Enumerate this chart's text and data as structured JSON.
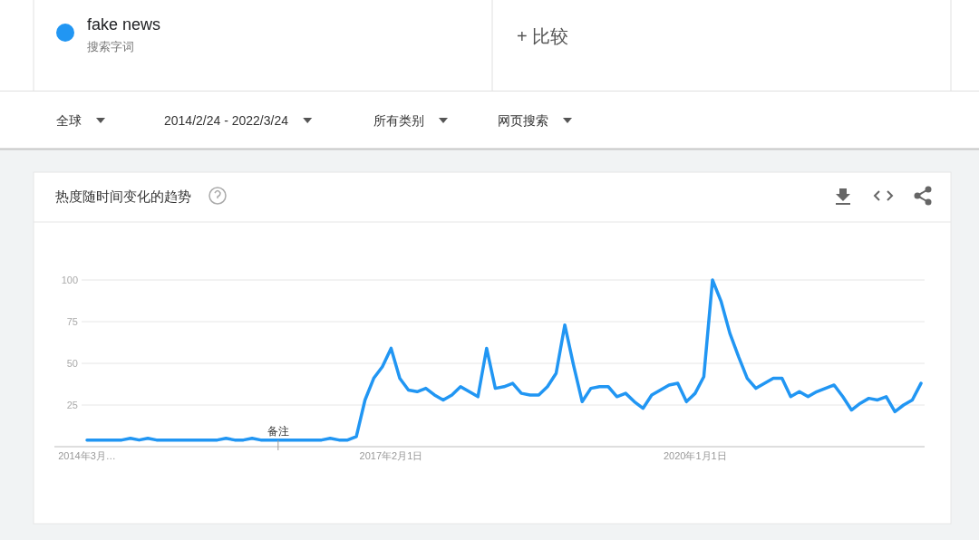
{
  "chart_data": {
    "type": "line",
    "title": "热度随时间变化的趋势",
    "annotations": [
      "搜索字词",
      "+ 比较",
      "全球",
      "2014/2/24 - 2022/3/24",
      "所有类别",
      "网页搜索",
      {
        "text": "备注",
        "x": "2016-01",
        "y": 4
      }
    ],
    "legend": "top left",
    "grid": "y",
    "line_style": "solid",
    "marker": "none",
    "xlim": [
      "2014-03",
      "2022-03"
    ],
    "xticks": [
      {
        "value": "2014-03",
        "label": "2014年3月…"
      },
      {
        "value": "2017-02-01",
        "label": "2017年2月1日"
      },
      {
        "value": "2020-01-01",
        "label": "2020年1月1日"
      }
    ],
    "ylim": [
      0,
      100
    ],
    "yticks": [
      {
        "value": 0,
        "label": null
      },
      25,
      50,
      75,
      100
    ],
    "x": [
      "2014-03",
      "2014-04",
      "2014-05",
      "2014-06",
      "2014-07",
      "2014-08",
      "2014-09",
      "2014-10",
      "2014-11",
      "2014-12",
      "2015-01",
      "2015-02",
      "2015-03",
      "2015-04",
      "2015-05",
      "2015-06",
      "2015-07",
      "2015-08",
      "2015-09",
      "2015-10",
      "2015-11",
      "2015-12",
      "2016-01",
      "2016-02",
      "2016-03",
      "2016-04",
      "2016-05",
      "2016-06",
      "2016-07",
      "2016-08",
      "2016-09",
      "2016-10",
      "2016-11",
      "2016-12",
      "2017-01",
      "2017-02",
      "2017-03",
      "2017-04",
      "2017-05",
      "2017-06",
      "2017-07",
      "2017-08",
      "2017-09",
      "2017-10",
      "2017-11",
      "2017-12",
      "2018-01",
      "2018-02",
      "2018-03",
      "2018-04",
      "2018-05",
      "2018-06",
      "2018-07",
      "2018-08",
      "2018-09",
      "2018-10",
      "2018-11",
      "2018-12",
      "2019-01",
      "2019-02",
      "2019-03",
      "2019-04",
      "2019-05",
      "2019-06",
      "2019-07",
      "2019-08",
      "2019-09",
      "2019-10",
      "2019-11",
      "2019-12",
      "2020-01",
      "2020-02",
      "2020-03",
      "2020-04",
      "2020-05",
      "2020-06",
      "2020-07",
      "2020-08",
      "2020-09",
      "2020-10",
      "2020-11",
      "2020-12",
      "2021-01",
      "2021-02",
      "2021-03",
      "2021-04",
      "2021-05",
      "2021-06",
      "2021-07",
      "2021-08",
      "2021-09",
      "2021-10",
      "2021-11",
      "2021-12",
      "2022-01",
      "2022-02",
      "2022-03"
    ],
    "series": [
      {
        "name": "fake news",
        "color": "#2196f3",
        "values": [
          4,
          4,
          4,
          4,
          4,
          5,
          4,
          5,
          4,
          4,
          4,
          4,
          4,
          4,
          4,
          4,
          5,
          4,
          4,
          5,
          4,
          4,
          4,
          4,
          4,
          4,
          4,
          4,
          5,
          4,
          4,
          6,
          28,
          41,
          48,
          59,
          41,
          34,
          33,
          35,
          31,
          28,
          31,
          36,
          33,
          30,
          59,
          35,
          36,
          38,
          32,
          31,
          31,
          36,
          44,
          73,
          49,
          27,
          35,
          36,
          36,
          30,
          32,
          27,
          23,
          31,
          34,
          37,
          38,
          27,
          32,
          42,
          100,
          87,
          68,
          54,
          41,
          35,
          38,
          41,
          41,
          30,
          33,
          30,
          33,
          35,
          37,
          30,
          22,
          26,
          29,
          28,
          30,
          21,
          25,
          28,
          38
        ]
      }
    ]
  }
}
